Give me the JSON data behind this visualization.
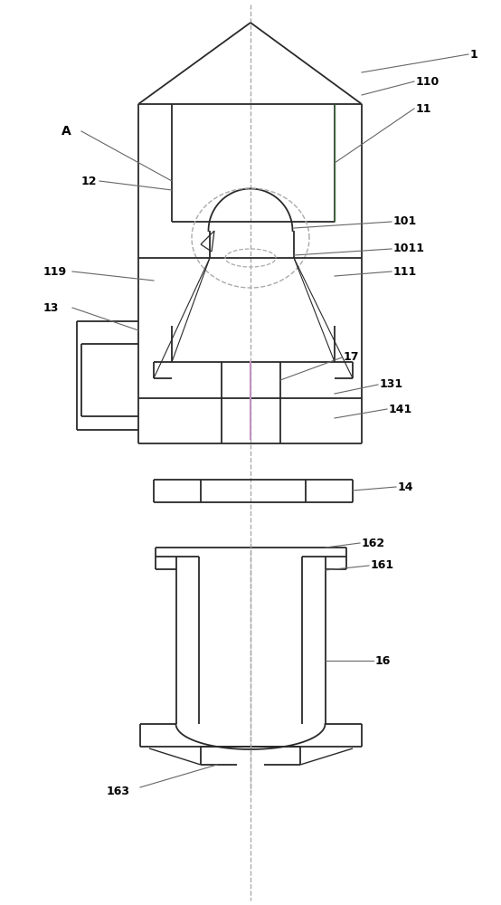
{
  "bg_color": "#ffffff",
  "lc": "#2a2a2a",
  "ann_color": "#666666",
  "dash_color": "#aaaaaa",
  "purple_color": "#c090c0",
  "green_color": "#4a7a4a"
}
